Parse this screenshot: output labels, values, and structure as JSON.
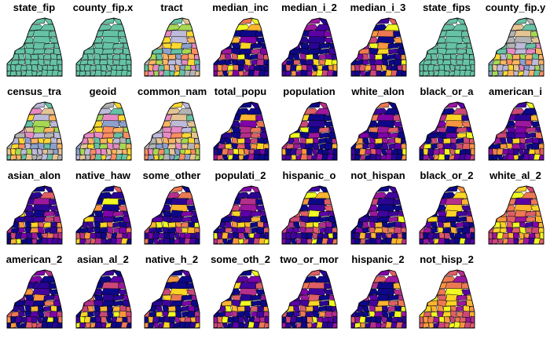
{
  "panels": [
    {
      "label": "state_fip",
      "palette": "categorical"
    },
    {
      "label": "county_fip.x",
      "palette": "categorical"
    },
    {
      "label": "tract",
      "palette": "categorical"
    },
    {
      "label": "median_inc",
      "palette": "plasma"
    },
    {
      "label": "median_i_2",
      "palette": "plasma"
    },
    {
      "label": "median_i_3",
      "palette": "plasma"
    },
    {
      "label": "state_fips",
      "palette": "categorical"
    },
    {
      "label": "county_fip.y",
      "palette": "categorical"
    },
    {
      "label": "census_tra",
      "palette": "categorical"
    },
    {
      "label": "geoid",
      "palette": "categorical"
    },
    {
      "label": "common_nam",
      "palette": "categorical"
    },
    {
      "label": "total_popu",
      "palette": "plasma"
    },
    {
      "label": "population",
      "palette": "plasma"
    },
    {
      "label": "white_alon",
      "palette": "plasma"
    },
    {
      "label": "black_or_a",
      "palette": "plasma"
    },
    {
      "label": "american_i",
      "palette": "plasma"
    },
    {
      "label": "asian_alon",
      "palette": "plasma"
    },
    {
      "label": "native_haw",
      "palette": "plasma"
    },
    {
      "label": "some_other",
      "palette": "plasma"
    },
    {
      "label": "populati_2",
      "palette": "plasma"
    },
    {
      "label": "hispanic_o",
      "palette": "plasma"
    },
    {
      "label": "not_hispan",
      "palette": "plasma"
    },
    {
      "label": "black_or_2",
      "palette": "plasma"
    },
    {
      "label": "white_al_2",
      "palette": "plasma"
    },
    {
      "label": "american_2",
      "palette": "plasma"
    },
    {
      "label": "asian_al_2",
      "palette": "plasma"
    },
    {
      "label": "native_h_2",
      "palette": "plasma"
    },
    {
      "label": "some_oth_2",
      "palette": "plasma"
    },
    {
      "label": "two_or_mor",
      "palette": "plasma"
    },
    {
      "label": "hispanic_2",
      "palette": "plasma"
    },
    {
      "label": "not_hisp_2",
      "palette": "plasma"
    }
  ],
  "colors": {
    "categorical": [
      "#66c2a5",
      "#8da0cb",
      "#e78ac3",
      "#a6d854",
      "#ffd92f",
      "#e5c494",
      "#b3b3b3",
      "#fc8d62",
      "#bebada",
      "#fdb462"
    ],
    "plasma": [
      "#0d0887",
      "#2a0593",
      "#41049d",
      "#5c01a6",
      "#7e03a8",
      "#9c179e",
      "#b52f8c",
      "#cc4778",
      "#de5f65",
      "#ed7953",
      "#f89540",
      "#fdb42f",
      "#fbd524",
      "#f0f921"
    ],
    "border": "#000000"
  }
}
